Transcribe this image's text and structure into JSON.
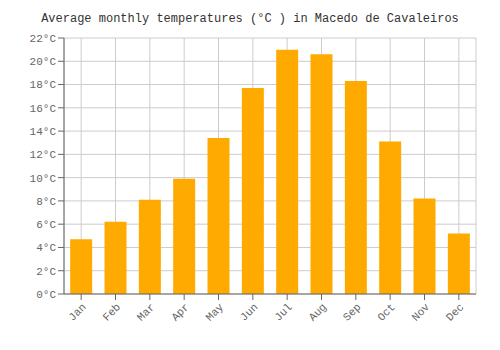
{
  "chart_data": {
    "type": "bar",
    "title": "Average monthly temperatures (°C ) in Macedo de Cavaleiros",
    "categories": [
      "Jan",
      "Feb",
      "Mar",
      "Apr",
      "May",
      "Jun",
      "Jul",
      "Aug",
      "Sep",
      "Oct",
      "Nov",
      "Dec"
    ],
    "values": [
      4.7,
      6.2,
      8.1,
      9.9,
      13.4,
      17.7,
      21.0,
      20.6,
      18.3,
      13.1,
      8.2,
      5.2
    ],
    "color": "#FFAA00",
    "ylim": [
      0,
      22
    ],
    "yticks": [
      {
        "value": 0,
        "label": "0°C"
      },
      {
        "value": 2,
        "label": "2°C"
      },
      {
        "value": 4,
        "label": "4°C"
      },
      {
        "value": 6,
        "label": "6°C"
      },
      {
        "value": 8,
        "label": "8°C"
      },
      {
        "value": 10,
        "label": "10°C"
      },
      {
        "value": 12,
        "label": "12°C"
      },
      {
        "value": 14,
        "label": "14°C"
      },
      {
        "value": 16,
        "label": "16°C"
      },
      {
        "value": 18,
        "label": "18°C"
      },
      {
        "value": 20,
        "label": "20°C"
      },
      {
        "value": 22,
        "label": "22°C"
      }
    ],
    "grid": true
  }
}
